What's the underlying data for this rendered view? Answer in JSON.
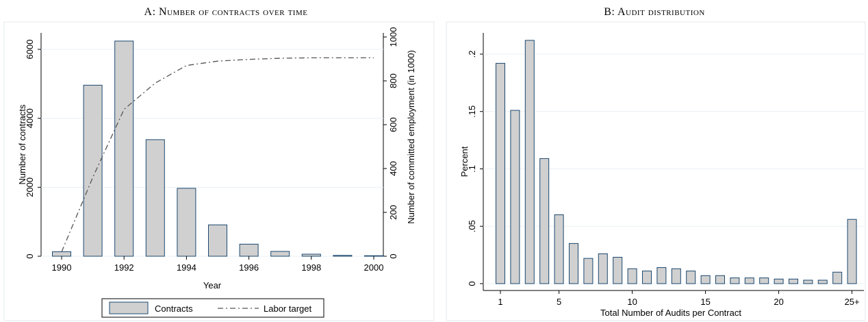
{
  "chart_data": [
    {
      "type": "bar",
      "title": "A: Number of contracts over time",
      "xlabel": "Year",
      "ylabel": "Number of contracts",
      "y2label": "Number of committed employment (in 1000)",
      "ylim": [
        0,
        6000
      ],
      "y2lim": [
        0,
        1000
      ],
      "xticks": [
        "1990",
        "1992",
        "1994",
        "1996",
        "1998",
        "2000"
      ],
      "yticks": [
        "0",
        "2000",
        "4000",
        "6000"
      ],
      "y2ticks": [
        "0",
        "200",
        "400",
        "600",
        "800",
        "1000"
      ],
      "legend_position": "bottom",
      "series": [
        {
          "name": "Contracts",
          "type": "bar",
          "x": [
            1990,
            1991,
            1992,
            1993,
            1994,
            1995,
            1996,
            1997,
            1998,
            1999,
            2000
          ],
          "values": [
            130,
            4960,
            6240,
            3380,
            1970,
            910,
            350,
            140,
            60,
            25,
            15
          ]
        },
        {
          "name": "Labor target",
          "type": "line",
          "axis": "right",
          "x": [
            1990,
            1991,
            1992,
            1993,
            1994,
            1995,
            1996,
            1997,
            1998,
            1999,
            2000
          ],
          "values": [
            20,
            360,
            670,
            790,
            870,
            890,
            898,
            903,
            905,
            905,
            905
          ]
        }
      ],
      "colors": {
        "bar_fill": "#d0d0d0",
        "bar_stroke": "#1a476f",
        "line": "#555555"
      }
    },
    {
      "type": "bar",
      "title": "B: Audit distribution",
      "xlabel": "Total Number of Audits per Contract",
      "ylabel": "Percent",
      "ylim": [
        0,
        0.22
      ],
      "xticks": [
        "1",
        "5",
        "10",
        "15",
        "20",
        "25+"
      ],
      "yticks": [
        "0",
        ".05",
        ".1",
        ".15",
        ".2"
      ],
      "categories": [
        1,
        2,
        3,
        4,
        5,
        6,
        7,
        8,
        9,
        10,
        11,
        12,
        13,
        14,
        15,
        16,
        17,
        18,
        19,
        20,
        21,
        22,
        23,
        24,
        25
      ],
      "values": [
        0.192,
        0.151,
        0.212,
        0.109,
        0.06,
        0.035,
        0.022,
        0.026,
        0.023,
        0.013,
        0.011,
        0.014,
        0.013,
        0.011,
        0.007,
        0.007,
        0.005,
        0.005,
        0.005,
        0.004,
        0.004,
        0.003,
        0.003,
        0.01,
        0.056
      ],
      "colors": {
        "bar_fill": "#d0d0d0",
        "bar_stroke": "#1a476f"
      }
    }
  ]
}
